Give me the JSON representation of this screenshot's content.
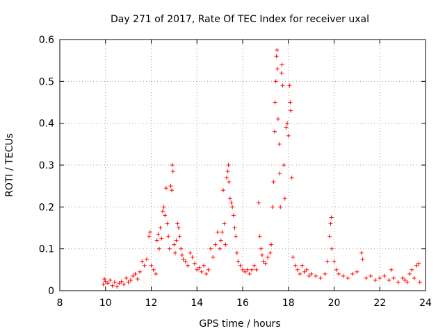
{
  "chart_data": {
    "type": "scatter",
    "title": "Day 271 of 2017, Rate Of TEC Index for receiver uxal",
    "xlabel": "GPS time / hours",
    "ylabel": "ROTI / TECUs",
    "xlim": [
      8,
      24
    ],
    "ylim": [
      0,
      0.6
    ],
    "xticks": [
      "8",
      "10",
      "12",
      "14",
      "16",
      "18",
      "20",
      "22",
      "24"
    ],
    "yticks": [
      "0",
      "0.1",
      "0.2",
      "0.3",
      "0.4",
      "0.5",
      "0.6"
    ],
    "grid": true,
    "marker": "+",
    "color": "#ff0000",
    "series": [
      {
        "name": "ROTI",
        "points": [
          [
            9.9,
            0.015
          ],
          [
            9.95,
            0.028
          ],
          [
            10.0,
            0.022
          ],
          [
            10.1,
            0.018
          ],
          [
            10.2,
            0.025
          ],
          [
            10.3,
            0.012
          ],
          [
            10.4,
            0.02
          ],
          [
            10.5,
            0.01
          ],
          [
            10.6,
            0.018
          ],
          [
            10.7,
            0.022
          ],
          [
            10.8,
            0.015
          ],
          [
            10.9,
            0.03
          ],
          [
            11.0,
            0.02
          ],
          [
            11.1,
            0.025
          ],
          [
            11.2,
            0.035
          ],
          [
            11.3,
            0.04
          ],
          [
            11.4,
            0.028
          ],
          [
            11.5,
            0.045
          ],
          [
            11.6,
            0.07
          ],
          [
            11.7,
            0.06
          ],
          [
            11.8,
            0.075
          ],
          [
            11.9,
            0.13
          ],
          [
            11.95,
            0.14
          ],
          [
            12.0,
            0.06
          ],
          [
            12.1,
            0.05
          ],
          [
            12.2,
            0.04
          ],
          [
            12.25,
            0.12
          ],
          [
            12.3,
            0.135
          ],
          [
            12.35,
            0.1
          ],
          [
            12.4,
            0.15
          ],
          [
            12.45,
            0.125
          ],
          [
            12.5,
            0.19
          ],
          [
            12.55,
            0.2
          ],
          [
            12.6,
            0.18
          ],
          [
            12.65,
            0.245
          ],
          [
            12.7,
            0.16
          ],
          [
            12.75,
            0.13
          ],
          [
            12.8,
            0.1
          ],
          [
            12.85,
            0.25
          ],
          [
            12.9,
            0.24
          ],
          [
            12.92,
            0.3
          ],
          [
            12.95,
            0.285
          ],
          [
            13.0,
            0.11
          ],
          [
            13.05,
            0.09
          ],
          [
            13.1,
            0.12
          ],
          [
            13.15,
            0.16
          ],
          [
            13.2,
            0.15
          ],
          [
            13.25,
            0.13
          ],
          [
            13.3,
            0.1
          ],
          [
            13.35,
            0.085
          ],
          [
            13.4,
            0.075
          ],
          [
            13.5,
            0.07
          ],
          [
            13.6,
            0.06
          ],
          [
            13.7,
            0.09
          ],
          [
            13.8,
            0.08
          ],
          [
            13.9,
            0.065
          ],
          [
            14.0,
            0.05
          ],
          [
            14.1,
            0.055
          ],
          [
            14.2,
            0.045
          ],
          [
            14.3,
            0.06
          ],
          [
            14.4,
            0.04
          ],
          [
            14.5,
            0.05
          ],
          [
            14.6,
            0.1
          ],
          [
            14.7,
            0.08
          ],
          [
            14.8,
            0.11
          ],
          [
            14.9,
            0.14
          ],
          [
            15.0,
            0.1
          ],
          [
            15.05,
            0.12
          ],
          [
            15.1,
            0.14
          ],
          [
            15.15,
            0.24
          ],
          [
            15.2,
            0.16
          ],
          [
            15.25,
            0.11
          ],
          [
            15.3,
            0.27
          ],
          [
            15.35,
            0.285
          ],
          [
            15.38,
            0.3
          ],
          [
            15.4,
            0.26
          ],
          [
            15.45,
            0.22
          ],
          [
            15.5,
            0.21
          ],
          [
            15.55,
            0.2
          ],
          [
            15.6,
            0.18
          ],
          [
            15.65,
            0.15
          ],
          [
            15.7,
            0.13
          ],
          [
            15.75,
            0.09
          ],
          [
            15.8,
            0.07
          ],
          [
            15.9,
            0.06
          ],
          [
            16.0,
            0.05
          ],
          [
            16.1,
            0.045
          ],
          [
            16.2,
            0.05
          ],
          [
            16.3,
            0.04
          ],
          [
            16.4,
            0.05
          ],
          [
            16.5,
            0.06
          ],
          [
            16.6,
            0.05
          ],
          [
            16.7,
            0.21
          ],
          [
            16.75,
            0.13
          ],
          [
            16.8,
            0.1
          ],
          [
            16.85,
            0.085
          ],
          [
            16.9,
            0.07
          ],
          [
            17.0,
            0.065
          ],
          [
            17.1,
            0.08
          ],
          [
            17.2,
            0.09
          ],
          [
            17.25,
            0.11
          ],
          [
            17.3,
            0.2
          ],
          [
            17.35,
            0.26
          ],
          [
            17.4,
            0.38
          ],
          [
            17.42,
            0.45
          ],
          [
            17.45,
            0.5
          ],
          [
            17.48,
            0.56
          ],
          [
            17.5,
            0.575
          ],
          [
            17.52,
            0.53
          ],
          [
            17.55,
            0.41
          ],
          [
            17.6,
            0.35
          ],
          [
            17.62,
            0.28
          ],
          [
            17.65,
            0.2
          ],
          [
            17.7,
            0.52
          ],
          [
            17.72,
            0.54
          ],
          [
            17.75,
            0.49
          ],
          [
            17.8,
            0.3
          ],
          [
            17.85,
            0.22
          ],
          [
            17.9,
            0.39
          ],
          [
            17.95,
            0.4
          ],
          [
            18.0,
            0.37
          ],
          [
            18.05,
            0.49
          ],
          [
            18.08,
            0.45
          ],
          [
            18.1,
            0.43
          ],
          [
            18.15,
            0.27
          ],
          [
            18.2,
            0.08
          ],
          [
            18.3,
            0.06
          ],
          [
            18.4,
            0.05
          ],
          [
            18.5,
            0.04
          ],
          [
            18.6,
            0.06
          ],
          [
            18.7,
            0.045
          ],
          [
            18.8,
            0.05
          ],
          [
            18.9,
            0.035
          ],
          [
            19.0,
            0.04
          ],
          [
            19.2,
            0.035
          ],
          [
            19.4,
            0.03
          ],
          [
            19.6,
            0.04
          ],
          [
            19.7,
            0.07
          ],
          [
            19.8,
            0.13
          ],
          [
            19.85,
            0.16
          ],
          [
            19.88,
            0.175
          ],
          [
            19.9,
            0.1
          ],
          [
            20.0,
            0.07
          ],
          [
            20.1,
            0.05
          ],
          [
            20.2,
            0.04
          ],
          [
            20.4,
            0.035
          ],
          [
            20.6,
            0.03
          ],
          [
            20.8,
            0.04
          ],
          [
            21.0,
            0.045
          ],
          [
            21.2,
            0.09
          ],
          [
            21.25,
            0.075
          ],
          [
            21.4,
            0.03
          ],
          [
            21.6,
            0.035
          ],
          [
            21.8,
            0.025
          ],
          [
            22.0,
            0.03
          ],
          [
            22.2,
            0.035
          ],
          [
            22.4,
            0.025
          ],
          [
            22.5,
            0.05
          ],
          [
            22.6,
            0.03
          ],
          [
            22.8,
            0.02
          ],
          [
            23.0,
            0.03
          ],
          [
            23.1,
            0.025
          ],
          [
            23.2,
            0.02
          ],
          [
            23.3,
            0.04
          ],
          [
            23.4,
            0.05
          ],
          [
            23.5,
            0.03
          ],
          [
            23.6,
            0.06
          ],
          [
            23.7,
            0.065
          ],
          [
            23.75,
            0.02
          ]
        ]
      }
    ]
  }
}
